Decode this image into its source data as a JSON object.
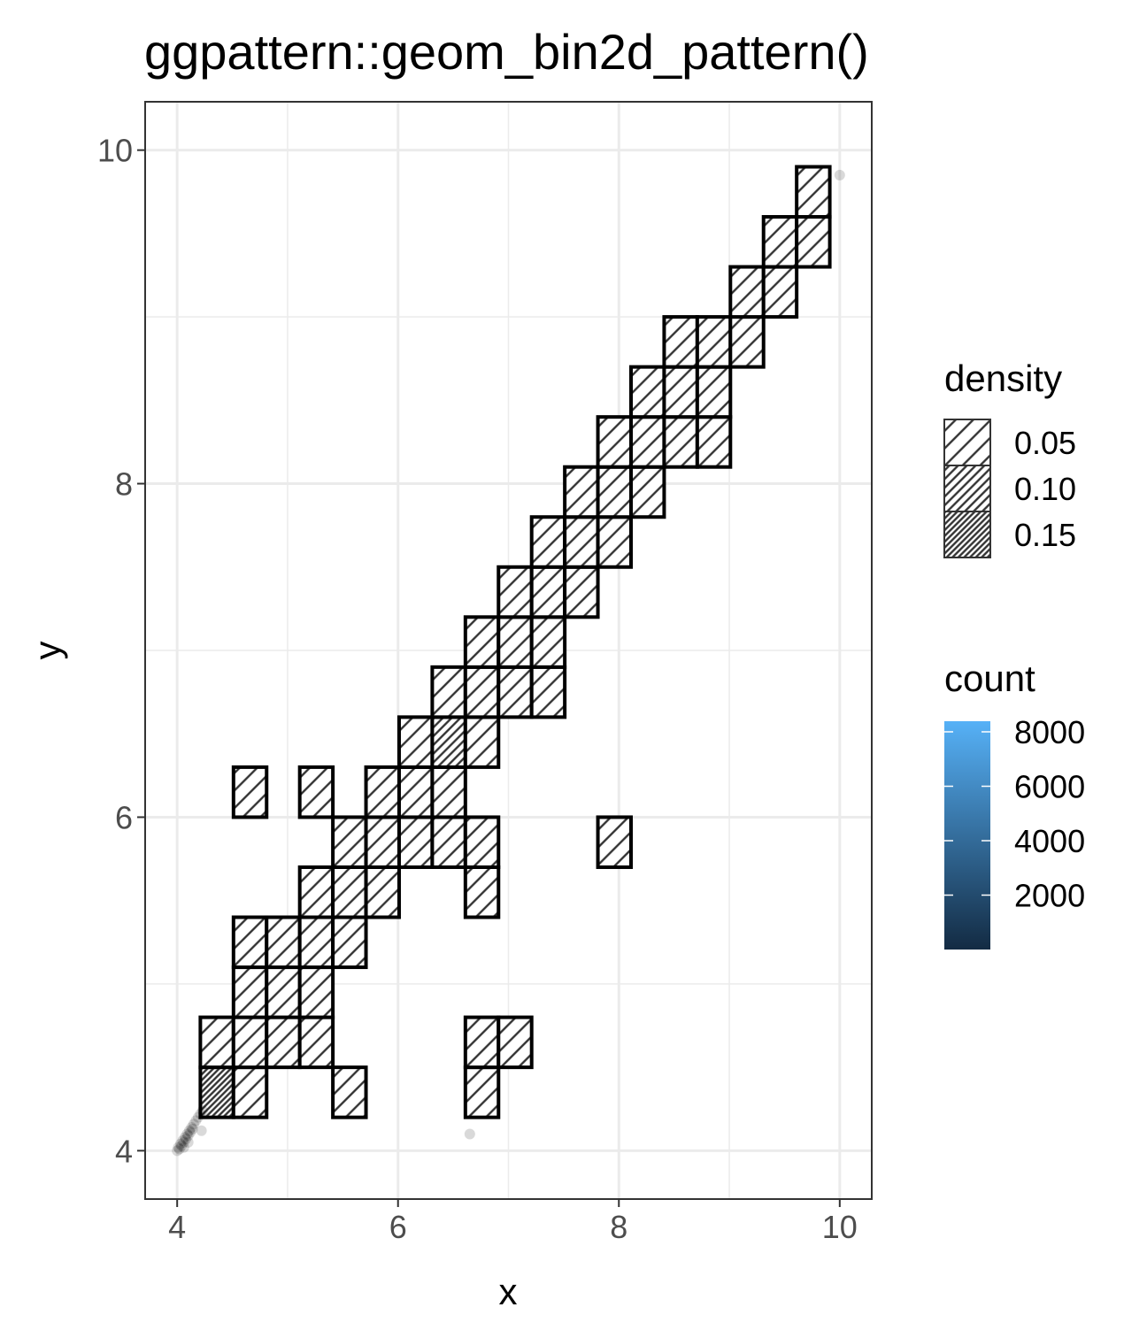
{
  "chart_data": {
    "type": "bin2d",
    "title": "ggpattern::geom_bin2d_pattern()",
    "x_label": "x",
    "y_label": "y",
    "xlim": [
      3.71,
      10.29
    ],
    "ylim": [
      3.71,
      10.29
    ],
    "xticks": [
      4,
      6,
      8,
      10
    ],
    "yticks": [
      4,
      6,
      8,
      10
    ],
    "grid": true,
    "binwidth": [
      0.3,
      0.3
    ],
    "tiles": {
      "x": [
        4.36,
        4.66,
        5.56,
        6.76,
        4.36,
        4.66,
        4.96,
        5.26,
        6.76,
        7.06,
        4.66,
        4.96,
        5.26,
        4.66,
        4.96,
        5.26,
        5.56,
        5.26,
        5.56,
        5.86,
        6.76,
        5.56,
        5.86,
        6.16,
        6.46,
        6.76,
        7.96,
        4.66,
        5.26,
        5.86,
        6.16,
        6.46,
        6.16,
        6.46,
        6.76,
        6.46,
        6.76,
        7.06,
        7.36,
        6.76,
        7.06,
        7.36,
        7.06,
        7.36,
        7.66,
        7.36,
        7.66,
        7.96,
        7.66,
        7.96,
        8.26,
        7.96,
        8.26,
        8.56,
        8.86,
        8.26,
        8.56,
        8.86,
        8.56,
        8.86,
        9.16,
        9.16,
        9.46,
        9.46,
        9.76,
        9.76
      ],
      "y": [
        4.35,
        4.35,
        4.35,
        4.35,
        4.65,
        4.65,
        4.65,
        4.65,
        4.65,
        4.65,
        4.95,
        4.95,
        4.95,
        5.25,
        5.25,
        5.25,
        5.25,
        5.55,
        5.55,
        5.55,
        5.55,
        5.85,
        5.85,
        5.85,
        5.85,
        5.85,
        5.85,
        6.15,
        6.15,
        6.15,
        6.15,
        6.15,
        6.45,
        6.45,
        6.45,
        6.75,
        6.75,
        6.75,
        6.75,
        7.05,
        7.05,
        7.05,
        7.35,
        7.35,
        7.35,
        7.65,
        7.65,
        7.65,
        7.95,
        7.95,
        7.95,
        8.25,
        8.25,
        8.25,
        8.25,
        8.55,
        8.55,
        8.55,
        8.85,
        8.85,
        8.85,
        9.15,
        9.15,
        9.45,
        9.45,
        9.75
      ],
      "density": [
        0.15,
        0.05,
        0.05,
        0.05,
        0.05,
        0.05,
        0.05,
        0.05,
        0.05,
        0.05,
        0.05,
        0.05,
        0.05,
        0.05,
        0.05,
        0.05,
        0.05,
        0.05,
        0.05,
        0.05,
        0.05,
        0.05,
        0.05,
        0.05,
        0.05,
        0.05,
        0.05,
        0.05,
        0.05,
        0.05,
        0.05,
        0.05,
        0.05,
        0.1,
        0.05,
        0.05,
        0.05,
        0.05,
        0.05,
        0.05,
        0.05,
        0.05,
        0.05,
        0.05,
        0.05,
        0.05,
        0.05,
        0.05,
        0.05,
        0.05,
        0.05,
        0.05,
        0.05,
        0.05,
        0.05,
        0.05,
        0.05,
        0.05,
        0.05,
        0.05,
        0.05,
        0.05,
        0.05,
        0.05,
        0.05,
        0.05
      ]
    },
    "points": {
      "x": [
        4.0,
        4.01,
        4.02,
        4.03,
        4.04,
        4.05,
        4.06,
        4.07,
        4.08,
        4.09,
        4.1,
        4.11,
        4.12,
        4.13,
        4.14,
        4.15,
        4.17,
        4.19,
        4.21,
        4.23,
        4.06,
        4.1,
        4.22,
        6.65,
        10.0
      ],
      "y": [
        4.0,
        4.02,
        4.01,
        4.04,
        4.03,
        4.06,
        4.05,
        4.08,
        4.07,
        4.1,
        4.09,
        4.12,
        4.11,
        4.14,
        4.13,
        4.16,
        4.18,
        4.2,
        4.22,
        4.24,
        4.02,
        4.05,
        4.12,
        4.1,
        9.85
      ],
      "color": "#000000",
      "alpha": 0.15
    },
    "density_legend": {
      "title": "density",
      "values": [
        0.05,
        0.1,
        0.15
      ],
      "value_labels": [
        "0.05",
        "0.10",
        "0.15"
      ]
    },
    "count_legend": {
      "title": "count",
      "lim": [
        1,
        8390
      ],
      "ticks": [
        2000,
        4000,
        6000,
        8000
      ],
      "colors": [
        "#132B43",
        "#56B1F7"
      ]
    }
  }
}
